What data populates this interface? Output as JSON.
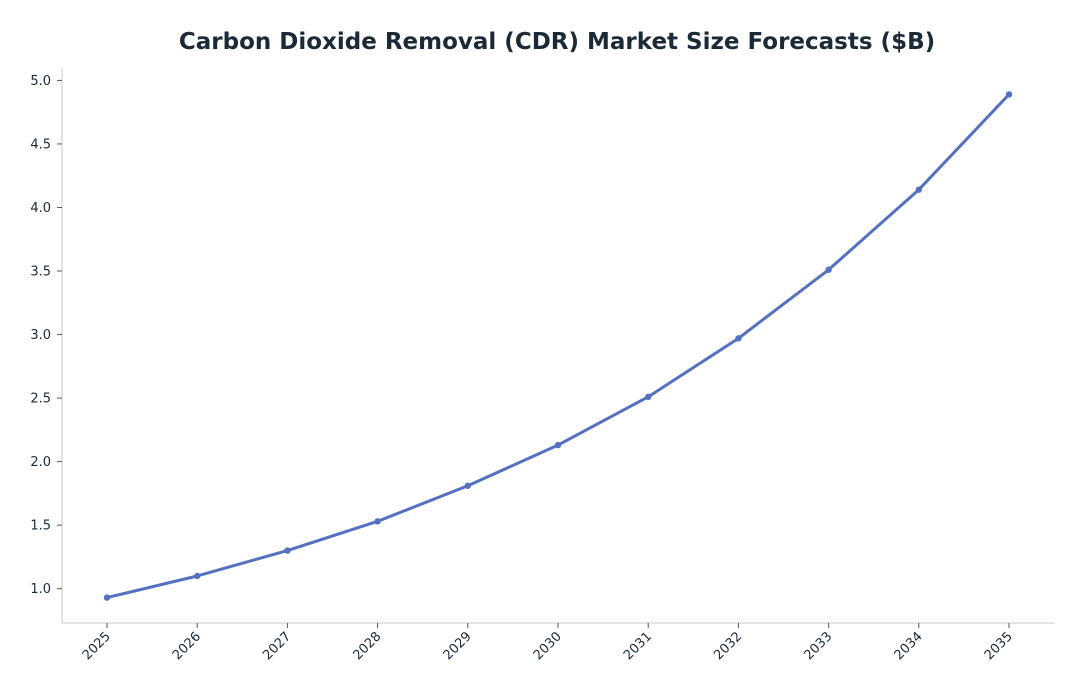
{
  "chart_data": {
    "type": "line",
    "title": "Carbon Dioxide Removal (CDR) Market Size Forecasts ($B)",
    "xlabel": "",
    "ylabel": "",
    "x": [
      "2025",
      "2026",
      "2027",
      "2028",
      "2029",
      "2030",
      "2031",
      "2032",
      "2033",
      "2034",
      "2035"
    ],
    "series": [
      {
        "values": [
          0.93,
          1.1,
          1.3,
          1.53,
          1.81,
          2.13,
          2.51,
          2.97,
          3.51,
          4.14,
          4.89
        ],
        "color": "#5470c1"
      }
    ],
    "ylim": [
      0.73,
      5.09
    ],
    "yticks": [
      "1.0",
      "1.5",
      "2.0",
      "2.5",
      "3.0",
      "3.5",
      "4.0",
      "4.5",
      "5.0"
    ],
    "grid": false,
    "legend": "none"
  }
}
